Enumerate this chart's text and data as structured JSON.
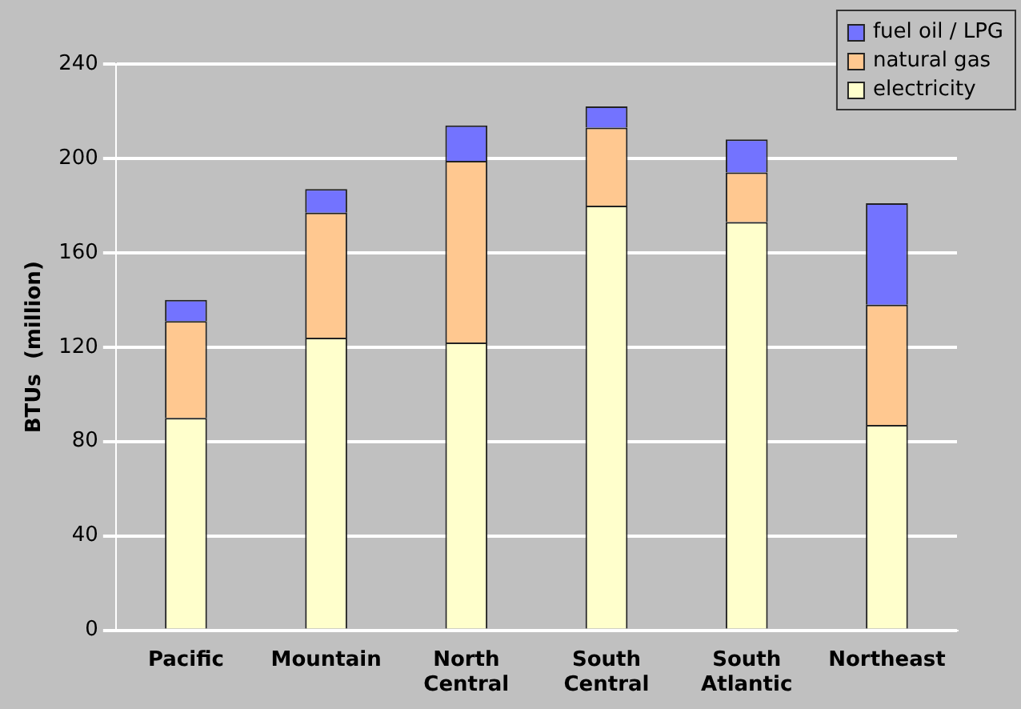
{
  "chart_data": {
    "type": "bar",
    "stacked": true,
    "ylabel": "BTUs  (million)",
    "categories": [
      "Pacific",
      "Mountain",
      "North Central",
      "South Central",
      "South Atlantic",
      "Northeast"
    ],
    "series": [
      {
        "name": "electricity",
        "color": "#ffffcc",
        "values": [
          90,
          124,
          122,
          180,
          173,
          87
        ]
      },
      {
        "name": "natural gas",
        "color": "#ffc890",
        "values": [
          41,
          53,
          77,
          33,
          21,
          51
        ]
      },
      {
        "name": "fuel oil / LPG",
        "color": "#7373ff",
        "values": [
          9,
          10,
          15,
          9,
          14,
          43
        ]
      }
    ],
    "ylim": [
      0,
      240
    ],
    "yticks": [
      0,
      40,
      80,
      120,
      160,
      200,
      240
    ],
    "grid": "y",
    "legend": "top right"
  }
}
